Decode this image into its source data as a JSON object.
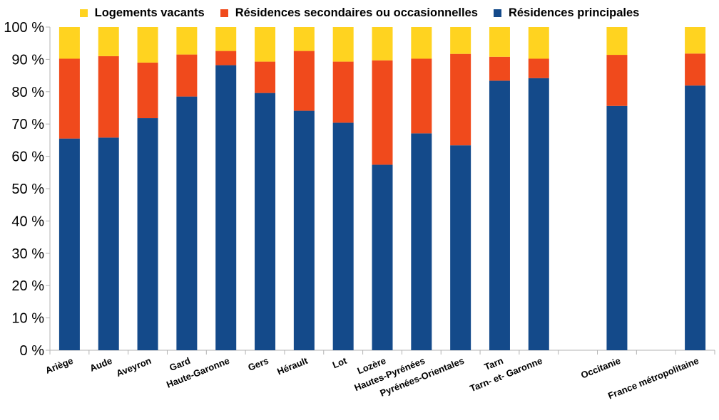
{
  "chart_data": {
    "type": "bar",
    "stacked": true,
    "percent": true,
    "categories": [
      "Ariège",
      "Aude",
      "Aveyron",
      "Gard",
      "Haute-Garonne",
      "Gers",
      "Hérault",
      "Lot",
      "Lozère",
      "Hautes-Pyrénées",
      "Pyrénées-Orientales",
      "Tarn",
      "Tarn- et- Garonne",
      "",
      "Occitanie",
      "",
      "France métropolitaine"
    ],
    "series": [
      {
        "name": "Résidences principales",
        "color": "#144a8a",
        "values": [
          65.5,
          65.8,
          71.8,
          78.5,
          88.2,
          79.6,
          74.1,
          70.4,
          57.4,
          67.1,
          63.4,
          83.4,
          84.2,
          null,
          75.6,
          null,
          81.9
        ]
      },
      {
        "name": "Résidences secondaires ou occasionnelles",
        "color": "#f04a1c",
        "values": [
          24.7,
          25.2,
          17.2,
          13.0,
          4.4,
          9.7,
          18.5,
          18.9,
          32.3,
          23.1,
          28.3,
          7.4,
          6.0,
          null,
          15.8,
          null,
          9.9
        ]
      },
      {
        "name": "Logements vacants",
        "color": "#ffd320",
        "values": [
          9.8,
          9.0,
          11.0,
          8.5,
          7.4,
          10.7,
          7.4,
          10.7,
          10.3,
          9.8,
          8.3,
          9.2,
          9.8,
          null,
          8.6,
          null,
          8.2
        ]
      }
    ],
    "y_ticks": [
      "0 %",
      "10 %",
      "20 %",
      "30 %",
      "40 %",
      "50 %",
      "60 %",
      "70 %",
      "80 %",
      "90 %",
      "100 %"
    ],
    "ylim": [
      0,
      100
    ],
    "grid": false,
    "legend_position": "top"
  }
}
